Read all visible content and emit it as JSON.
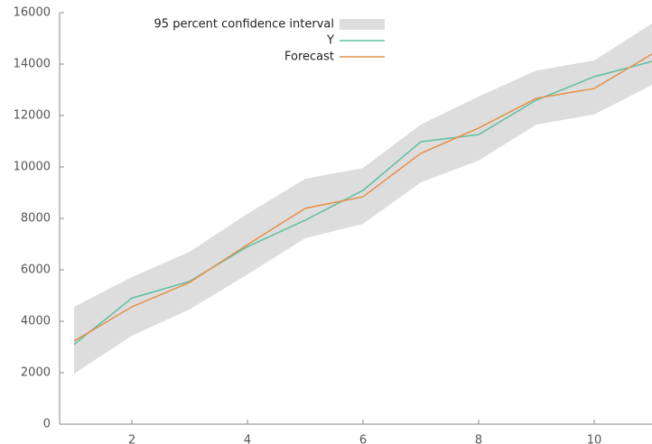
{
  "chart_data": {
    "type": "line",
    "x": [
      1,
      2,
      3,
      4,
      5,
      6,
      7,
      8,
      9,
      10,
      11
    ],
    "series": [
      {
        "name": "Y",
        "color": "#5cbf9f",
        "values": [
          3100,
          4900,
          5550,
          6900,
          7930,
          9090,
          10980,
          11260,
          12600,
          13510,
          14100
        ]
      },
      {
        "name": "Forecast",
        "color": "#e5904a",
        "values": [
          3230,
          4560,
          5510,
          6980,
          8390,
          8840,
          10530,
          11510,
          12670,
          13050,
          14390
        ]
      }
    ],
    "band": {
      "name": "95 percent confidence interval",
      "color": "#dddddd",
      "upper": [
        4560,
        5720,
        6700,
        8180,
        9540,
        9960,
        11650,
        12740,
        13750,
        14140,
        15580
      ],
      "lower": [
        1960,
        3440,
        4460,
        5820,
        7230,
        7790,
        9400,
        10250,
        11650,
        12040,
        13190
      ]
    },
    "xlim": [
      0.75,
      11
    ],
    "ylim": [
      0,
      16000
    ],
    "xticks": [
      2,
      4,
      6,
      8,
      10
    ],
    "yticks": [
      0,
      2000,
      4000,
      6000,
      8000,
      10000,
      12000,
      14000,
      16000
    ],
    "legend": "upper left"
  }
}
